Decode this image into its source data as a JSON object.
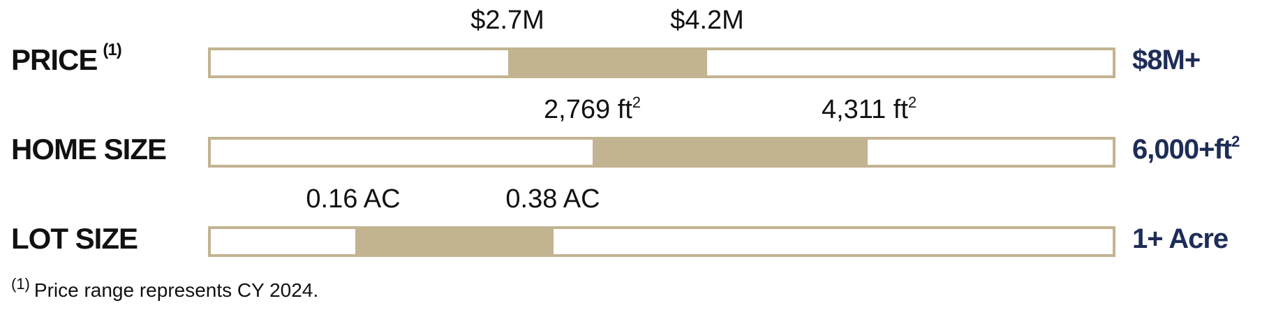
{
  "chart_data": {
    "type": "bar",
    "colors": {
      "fill": "#c2b391",
      "border": "#c2b391",
      "max_label": "#1e2d57"
    },
    "rows": [
      {
        "label": "PRICE",
        "label_note": "(1)",
        "range_start": 0.33,
        "range_end": 0.55,
        "low_label": "$2.7M",
        "high_label": "$4.2M",
        "max_label": "$8M+",
        "unit_sup": ""
      },
      {
        "label": "HOME SIZE",
        "label_note": "",
        "range_start": 0.4235,
        "range_end": 0.7285,
        "low_label": "2,769 ft",
        "high_label": "4,311 ft",
        "max_label": "6,000+ft",
        "unit_sup": "2"
      },
      {
        "label": "LOT SIZE",
        "label_note": "",
        "range_start": 0.16,
        "range_end": 0.38,
        "low_label": "0.16 AC",
        "high_label": "0.38 AC",
        "max_label": "1+ Acre",
        "unit_sup": ""
      }
    ]
  },
  "footnote": {
    "marker": "(1)",
    "text": "Price range represents CY 2024."
  }
}
